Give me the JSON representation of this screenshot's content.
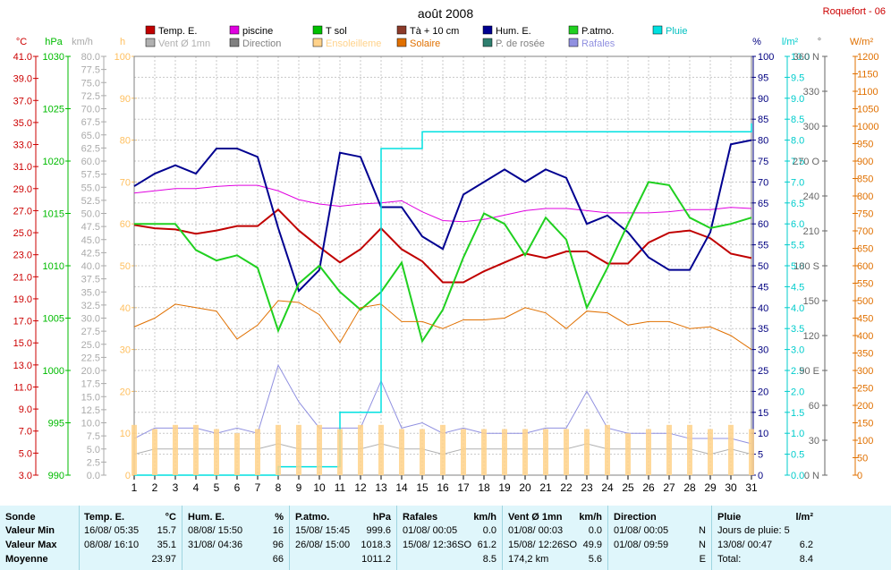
{
  "title": "août 2008",
  "station": "Roquefort - 06",
  "legend": [
    {
      "name": "Temp. E.",
      "color": "#c00000"
    },
    {
      "name": "piscine",
      "color": "#e000e0"
    },
    {
      "name": "T sol",
      "color": "#00c000"
    },
    {
      "name": "Tà + 10 cm",
      "color": "#8b3a2a"
    },
    {
      "name": "Hum. E.",
      "color": "#000090"
    },
    {
      "name": "P.atmo.",
      "color": "#20d020"
    },
    {
      "name": "Pluie",
      "color": "#00e0e0"
    },
    {
      "name": "Vent Ø 1mn",
      "color": "#b0b0b0"
    },
    {
      "name": "Direction",
      "color": "#808080"
    },
    {
      "name": "Ensoleilleme",
      "color": "#ffd28a"
    },
    {
      "name": "Solaire",
      "color": "#e07000"
    },
    {
      "name": "P. de rosée",
      "color": "#2f7f6f"
    },
    {
      "name": "Rafales",
      "color": "#9090e0"
    }
  ],
  "axes": {
    "temp": {
      "unit": "°C",
      "color": "#cc0000",
      "ticks": [
        "41.0",
        "39.0",
        "37.0",
        "35.0",
        "33.0",
        "31.0",
        "29.0",
        "27.0",
        "25.0",
        "23.0",
        "21.0",
        "19.0",
        "17.0",
        "15.0",
        "13.0",
        "11.0",
        "9.0",
        "7.0",
        "5.0",
        "3.0"
      ]
    },
    "press": {
      "unit": "hPa",
      "color": "#00bb00",
      "ticks": [
        "1030",
        "1025",
        "1020",
        "1015",
        "1010",
        "1005",
        "1000",
        "995",
        "990"
      ]
    },
    "wind": {
      "unit": "km/h",
      "color": "#aaaaaa",
      "ticks": [
        "80.0",
        "77.5",
        "75.0",
        "72.5",
        "70.0",
        "67.5",
        "65.0",
        "62.5",
        "60.0",
        "57.5",
        "55.0",
        "52.5",
        "50.0",
        "47.5",
        "45.0",
        "42.5",
        "40.0",
        "37.5",
        "35.0",
        "32.5",
        "30.0",
        "27.5",
        "25.0",
        "22.5",
        "20.0",
        "17.5",
        "15.0",
        "12.5",
        "10.0",
        "7.5",
        "5.0",
        "2.5",
        "0.0"
      ]
    },
    "sun": {
      "unit": "h",
      "color": "#ffc060",
      "ticks": [
        "100",
        "90",
        "80",
        "70",
        "60",
        "50",
        "40",
        "30",
        "20",
        "10",
        "0"
      ]
    },
    "hum": {
      "unit": "%",
      "color": "#000080",
      "ticks": [
        "100",
        "95",
        "90",
        "85",
        "80",
        "75",
        "70",
        "65",
        "60",
        "55",
        "50",
        "45",
        "40",
        "35",
        "30",
        "25",
        "20",
        "15",
        "10",
        "5",
        "0"
      ]
    },
    "rain": {
      "unit": "l/m²",
      "color": "#00cccc",
      "ticks": [
        "10.0",
        "9.5",
        "9.0",
        "8.5",
        "8.0",
        "7.5",
        "7.0",
        "6.5",
        "6.0",
        "5.5",
        "5.0",
        "4.5",
        "4.0",
        "3.5",
        "3.0",
        "2.5",
        "2.0",
        "1.5",
        "1.0",
        "0.5",
        "0.0"
      ]
    },
    "dir": {
      "unit": "°",
      "color": "#666666",
      "ticks": [
        "360 N",
        "330",
        "300",
        "270 O",
        "240",
        "210",
        "180 S",
        "150",
        "120",
        "90 E",
        "60",
        "30",
        "0 N"
      ]
    },
    "solar": {
      "unit": "W/m²",
      "color": "#e07000",
      "ticks": [
        "1200",
        "1150",
        "1100",
        "1050",
        "1000",
        "950",
        "900",
        "850",
        "800",
        "750",
        "700",
        "650",
        "600",
        "550",
        "500",
        "450",
        "400",
        "350",
        "300",
        "250",
        "200",
        "150",
        "100",
        "50",
        "0"
      ]
    }
  },
  "chart_data": {
    "type": "line",
    "x": [
      1,
      2,
      3,
      4,
      5,
      6,
      7,
      8,
      9,
      10,
      11,
      12,
      13,
      14,
      15,
      16,
      17,
      18,
      19,
      20,
      21,
      22,
      23,
      24,
      25,
      26,
      27,
      28,
      29,
      30,
      31
    ],
    "xlabels": [
      "1",
      "2",
      "3",
      "4",
      "5",
      "6",
      "7",
      "8",
      "9",
      "10",
      "11",
      "12",
      "13",
      "14",
      "15",
      "16",
      "17",
      "18",
      "19",
      "20",
      "21",
      "22",
      "23",
      "24",
      "25",
      "26",
      "27",
      "28",
      "29",
      "30",
      "31"
    ],
    "series": [
      {
        "name": "Temp. E.",
        "axis": "temp",
        "values": [
          25.7,
          25.4,
          25.3,
          24.9,
          25.2,
          25.6,
          25.6,
          27.1,
          25.2,
          23.7,
          22.3,
          23.5,
          25.4,
          23.5,
          22.4,
          20.5,
          20.5,
          21.5,
          22.3,
          23.1,
          22.7,
          23.3,
          23.3,
          22.2,
          22.2,
          24.1,
          25.0,
          25.2,
          24.5,
          23.1,
          22.7
        ]
      },
      {
        "name": "piscine",
        "axis": "temp",
        "values": [
          28.6,
          28.8,
          29.0,
          29.0,
          29.2,
          29.3,
          29.3,
          28.8,
          28.0,
          27.6,
          27.4,
          27.6,
          27.7,
          27.9,
          26.9,
          26.1,
          26.0,
          26.2,
          26.6,
          27.0,
          27.2,
          27.2,
          27.0,
          26.8,
          26.8,
          26.8,
          26.9,
          27.1,
          27.1,
          27.3,
          27.2
        ]
      },
      {
        "name": "Hum. E.",
        "axis": "hum",
        "values": [
          69,
          72,
          74,
          72,
          78,
          78,
          76,
          59,
          44,
          49,
          77,
          76,
          64,
          64,
          57,
          54,
          67,
          70,
          73,
          70,
          73,
          71,
          60,
          62,
          58,
          52,
          49,
          49,
          58,
          79,
          80
        ]
      },
      {
        "name": "P.atmo.",
        "axis": "press",
        "values": [
          1014.0,
          1014.0,
          1014.0,
          1011.5,
          1010.5,
          1011.0,
          1009.8,
          1003.8,
          1008.3,
          1010.0,
          1007.5,
          1005.8,
          1007.5,
          1010.3,
          1002.8,
          1005.8,
          1010.8,
          1015.0,
          1014.0,
          1011.0,
          1014.6,
          1012.5,
          1006.0,
          1009.8,
          1014.0,
          1018.0,
          1017.7,
          1014.6,
          1013.6,
          1014.0,
          1014.6
        ]
      },
      {
        "name": "Rafales",
        "axis": "wind",
        "values": [
          7,
          9,
          9,
          9,
          8,
          9,
          8,
          21,
          14,
          9,
          9,
          9,
          18,
          9,
          10,
          8,
          9,
          8,
          8,
          8,
          9,
          9,
          16,
          9,
          8,
          8,
          8,
          7,
          7,
          7,
          6
        ]
      },
      {
        "name": "Vent Ø 1mn",
        "axis": "wind",
        "values": [
          4,
          5,
          5,
          5,
          5,
          5,
          5,
          6,
          5,
          5,
          5,
          5,
          6,
          5,
          5,
          4,
          5,
          5,
          5,
          5,
          5,
          5,
          6,
          5,
          5,
          5,
          5,
          5,
          4,
          5,
          4
        ]
      },
      {
        "name": "Solaire",
        "axis": "solar",
        "values": [
          425,
          450,
          490,
          480,
          470,
          390,
          430,
          500,
          495,
          460,
          380,
          480,
          490,
          440,
          440,
          420,
          445,
          445,
          450,
          480,
          465,
          420,
          470,
          465,
          430,
          440,
          440,
          420,
          425,
          400,
          360
        ]
      },
      {
        "name": "Pluie",
        "axis": "rain",
        "values": [
          0,
          0,
          0,
          0,
          0,
          0,
          0,
          0.2,
          0.2,
          0.2,
          1.5,
          1.5,
          7.8,
          7.8,
          8.2,
          8.2,
          8.2,
          8.2,
          8.2,
          8.2,
          8.2,
          8.2,
          8.2,
          8.2,
          8.2,
          8.2,
          8.2,
          8.2,
          8.2,
          8.2,
          8.4
        ]
      },
      {
        "name": "Ensoleilleme",
        "axis": "sun",
        "values": [
          12,
          11,
          12,
          12,
          11,
          10,
          11,
          12,
          12,
          12,
          11,
          12,
          12,
          11,
          11,
          12,
          11,
          11,
          11,
          11,
          11,
          11,
          11,
          12,
          10,
          11,
          12,
          12,
          11,
          12,
          11
        ]
      }
    ],
    "ylim_temp": [
      3,
      41
    ],
    "ylim_press": [
      990,
      1030
    ],
    "ylim_hum": [
      0,
      100
    ],
    "ylim_wind": [
      0,
      80
    ],
    "ylim_rain": [
      0,
      10
    ],
    "ylim_solar": [
      0,
      1200
    ],
    "ylim_sun": [
      0,
      100
    ],
    "ylim_dir": [
      0,
      360
    ],
    "grid": true
  },
  "stats": {
    "rows": [
      "Sonde",
      "Valeur Min",
      "Valeur Max",
      "Moyenne"
    ],
    "columns": [
      {
        "header": "Temp. E.",
        "unit": "°C",
        "min_date": "16/08/ 05:35",
        "min": "15.7",
        "max_date": "08/08/ 16:10",
        "max": "35.1",
        "avg": "23.97"
      },
      {
        "header": "Hum. E.",
        "unit": "%",
        "min_date": "08/08/ 15:50",
        "min": "16",
        "max_date": "31/08/ 04:36",
        "max": "96",
        "avg": "66"
      },
      {
        "header": "P.atmo.",
        "unit": "hPa",
        "min_date": "15/08/ 15:45",
        "min": "999.6",
        "max_date": "26/08/ 15:00",
        "max": "1018.3",
        "avg": "1011.2"
      },
      {
        "header": "Rafales",
        "unit": "km/h",
        "min_date": "01/08/ 00:05",
        "min": "0.0",
        "max_date": "15/08/ 12:36SO",
        "max": "61.2",
        "avg": "8.5"
      },
      {
        "header": "Vent Ø 1mn",
        "unit": "km/h",
        "min_date": "01/08/ 00:03",
        "min": "0.0",
        "max_date": "15/08/ 12:26SO",
        "max": "49.9",
        "avg_label": "174,2 km",
        "avg": "5.6"
      },
      {
        "header": "Direction",
        "unit": "",
        "min_date": "01/08/ 00:05",
        "min": "N",
        "max_date": "01/08/ 09:59",
        "max": "N",
        "avg": "E"
      },
      {
        "header": "Pluie",
        "unit": "l/m²",
        "min_date": "Jours de pluie: 5",
        "min": "",
        "max_date": "13/08/ 00:47",
        "max": "6.2",
        "avg_label": "Total:",
        "avg": "8.4"
      }
    ]
  }
}
